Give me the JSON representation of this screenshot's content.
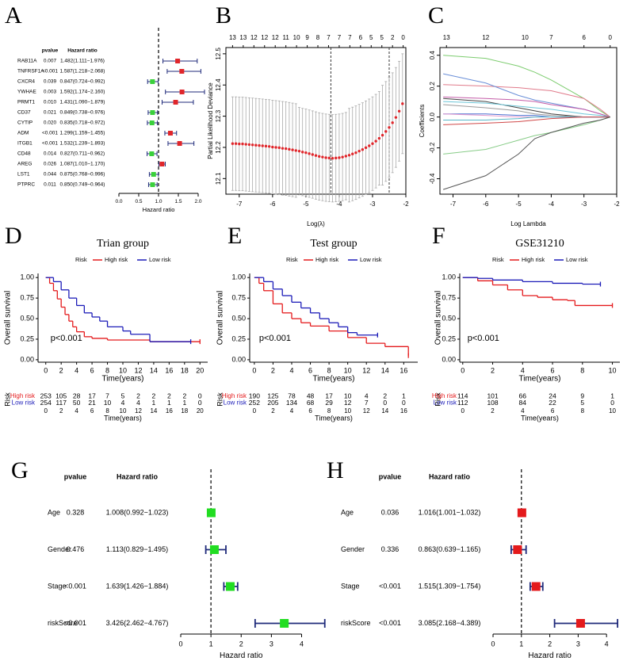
{
  "chart_data": [
    {
      "type": "forest",
      "panel": "A",
      "column_headers": [
        "pvalue",
        "Hazard ratio"
      ],
      "categories": [
        "RAB11A",
        "TNFRSF1A",
        "CXCR4",
        "YWHAE",
        "PRMT1",
        "CD37",
        "CYTIP",
        "ADM",
        "ITGB1",
        "CD48",
        "AREG",
        "LST1",
        "PTPRC"
      ],
      "pvalues": [
        "0.007",
        "<0.001",
        "0.039",
        "0.003",
        "0.010",
        "0.021",
        "0.020",
        "<0.001",
        "<0.001",
        "0.014",
        "0.026",
        "0.044",
        "0.011"
      ],
      "values": [
        1.482,
        1.587,
        0.847,
        1.592,
        1.431,
        0.849,
        0.835,
        1.299,
        1.532,
        0.827,
        1.087,
        0.875,
        0.85
      ],
      "lower": [
        1.111,
        1.218,
        0.724,
        1.174,
        1.09,
        0.738,
        0.718,
        1.159,
        1.239,
        0.711,
        1.01,
        0.768,
        0.749
      ],
      "upper": [
        1.976,
        2.068,
        0.992,
        2.16,
        1.879,
        0.976,
        0.972,
        1.455,
        1.893,
        0.962,
        1.17,
        0.996,
        0.964
      ],
      "value_labels": [
        "1.482(1.111−1.976)",
        "1.587(1.218−2.068)",
        "0.847(0.724−0.992)",
        "1.592(1.174−2.160)",
        "1.431(1.090−1.879)",
        "0.849(0.738−0.976)",
        "0.835(0.718−0.972)",
        "1.299(1.159−1.455)",
        "1.532(1.239−1.893)",
        "0.827(0.711−0.962)",
        "1.087(1.010−1.170)",
        "0.875(0.768−0.996)",
        "0.850(0.749−0.964)"
      ],
      "colors": [
        "#e0262b",
        "#e0262b",
        "#3ad13a",
        "#e0262b",
        "#e0262b",
        "#3ad13a",
        "#3ad13a",
        "#e0262b",
        "#e0262b",
        "#3ad13a",
        "#e0262b",
        "#3ad13a",
        "#3ad13a"
      ],
      "ci_color": "#1f2a7a",
      "reference_line": 1,
      "xlim": [
        0,
        2.2
      ],
      "xticks": [
        {
          "value": 0,
          "label": "0.0"
        },
        {
          "value": 0.5,
          "label": "0.5"
        },
        {
          "value": 1,
          "label": "1.0"
        },
        {
          "value": 1.5,
          "label": "1.5"
        },
        {
          "value": 2,
          "label": "2.0"
        }
      ],
      "xlabel": "Hazard ratio"
    },
    {
      "type": "cv_curve",
      "panel": "B",
      "xlabel": "Log(λ)",
      "ylabel": "Partial Likelihood Deviance",
      "x": [
        -7.2,
        -7.1,
        -7.0,
        -6.9,
        -6.8,
        -6.7,
        -6.6,
        -6.5,
        -6.4,
        -6.3,
        -6.2,
        -6.1,
        -6.0,
        -5.9,
        -5.8,
        -5.7,
        -5.6,
        -5.5,
        -5.4,
        -5.3,
        -5.2,
        -5.1,
        -5.0,
        -4.9,
        -4.8,
        -4.7,
        -4.6,
        -4.5,
        -4.4,
        -4.3,
        -4.2,
        -4.1,
        -4.0,
        -3.9,
        -3.8,
        -3.7,
        -3.6,
        -3.5,
        -3.4,
        -3.3,
        -3.2,
        -3.1,
        -3.0,
        -2.9,
        -2.8,
        -2.7,
        -2.6,
        -2.5,
        -2.4,
        -2.3,
        -2.2,
        -2.1
      ],
      "values": [
        12.212,
        12.212,
        12.211,
        12.211,
        12.21,
        12.209,
        12.208,
        12.207,
        12.206,
        12.205,
        12.204,
        12.203,
        12.201,
        12.2,
        12.199,
        12.197,
        12.196,
        12.194,
        12.192,
        12.19,
        12.188,
        12.185,
        12.183,
        12.18,
        12.177,
        12.174,
        12.171,
        12.169,
        12.167,
        12.166,
        12.165,
        12.166,
        12.167,
        12.169,
        12.172,
        12.175,
        12.179,
        12.183,
        12.188,
        12.193,
        12.199,
        12.205,
        12.212,
        12.22,
        12.229,
        12.239,
        12.251,
        12.264,
        12.279,
        12.296,
        12.316,
        12.34
      ],
      "errors": [
        0.15,
        0.15,
        0.15,
        0.15,
        0.15,
        0.15,
        0.15,
        0.15,
        0.15,
        0.15,
        0.15,
        0.15,
        0.15,
        0.15,
        0.15,
        0.15,
        0.15,
        0.15,
        0.15,
        0.15,
        0.14,
        0.14,
        0.14,
        0.14,
        0.14,
        0.14,
        0.14,
        0.14,
        0.14,
        0.14,
        0.14,
        0.14,
        0.14,
        0.14,
        0.14,
        0.15,
        0.15,
        0.15,
        0.15,
        0.15,
        0.15,
        0.15,
        0.15,
        0.15,
        0.15,
        0.16,
        0.16,
        0.16,
        0.16,
        0.16,
        0.16,
        0.16
      ],
      "color": "#e0262b",
      "error_color": "#aaaaaa",
      "xlim": [
        -7.4,
        -2.0
      ],
      "xticks": [
        -7,
        -6,
        -5,
        -4,
        -3,
        -2
      ],
      "ylim": [
        12.05,
        12.52
      ],
      "yticks": [
        12.1,
        12.2,
        12.3,
        12.4,
        12.5
      ],
      "top_ticks": [
        {
          "value": -7.2,
          "label": "13"
        },
        {
          "value": -6.88,
          "label": "13"
        },
        {
          "value": -6.56,
          "label": "12"
        },
        {
          "value": -6.24,
          "label": "12"
        },
        {
          "value": -5.92,
          "label": "12"
        },
        {
          "value": -5.6,
          "label": "11"
        },
        {
          "value": -5.28,
          "label": "10"
        },
        {
          "value": -4.96,
          "label": "9"
        },
        {
          "value": -4.64,
          "label": "8"
        },
        {
          "value": -4.32,
          "label": "7"
        },
        {
          "value": -4.0,
          "label": "7"
        },
        {
          "value": -3.68,
          "label": "7"
        },
        {
          "value": -3.36,
          "label": "6"
        },
        {
          "value": -3.04,
          "label": "5"
        },
        {
          "value": -2.72,
          "label": "5"
        },
        {
          "value": -2.4,
          "label": "2"
        },
        {
          "value": -2.08,
          "label": "0"
        }
      ],
      "vlines": [
        -4.25,
        -2.5
      ]
    },
    {
      "type": "coef_path",
      "panel": "C",
      "xlabel": "Log Lambda",
      "ylabel": "Coefficients",
      "x": [
        -7.3,
        -6,
        -5,
        -4.5,
        -4,
        -3,
        -2.5,
        -2.2
      ],
      "series": [
        {
          "color": "#7ccc6e",
          "values": [
            0.4,
            0.38,
            0.33,
            0.29,
            0.24,
            0.12,
            0.04,
            0
          ]
        },
        {
          "color": "#e07a8a",
          "values": [
            0.21,
            0.2,
            0.19,
            0.18,
            0.17,
            0.12,
            0.05,
            0
          ]
        },
        {
          "color": "#6a8fd8",
          "values": [
            0.28,
            0.22,
            0.14,
            0.11,
            0.09,
            0.05,
            0.02,
            0
          ]
        },
        {
          "color": "#c45ca8",
          "values": [
            0.13,
            0.12,
            0.11,
            0.1,
            0.08,
            0.05,
            0.02,
            0
          ]
        },
        {
          "color": "#444444",
          "values": [
            0.12,
            0.1,
            0.06,
            0.04,
            0.02,
            0,
            0,
            0
          ]
        },
        {
          "color": "#6cc6d8",
          "values": [
            0.1,
            0.09,
            0.07,
            0.06,
            0.05,
            0.02,
            0.01,
            0
          ]
        },
        {
          "color": "#999999",
          "values": [
            0.08,
            0.06,
            0.04,
            0.02,
            0.01,
            0,
            0,
            0
          ]
        },
        {
          "color": "#4a6fd0",
          "values": [
            0.02,
            0.02,
            0.01,
            0.01,
            0,
            0,
            0,
            0
          ]
        },
        {
          "color": "#e39ad0",
          "values": [
            0.02,
            0.01,
            0,
            0,
            0,
            0,
            0,
            0
          ]
        },
        {
          "color": "#58b8c8",
          "values": [
            -0.02,
            -0.02,
            -0.01,
            0,
            0,
            0,
            0,
            0
          ]
        },
        {
          "color": "#d04848",
          "values": [
            -0.05,
            -0.04,
            -0.03,
            -0.02,
            -0.01,
            0,
            0,
            0
          ]
        },
        {
          "color": "#88cc88",
          "values": [
            -0.24,
            -0.21,
            -0.15,
            -0.12,
            -0.1,
            -0.05,
            -0.02,
            0
          ]
        },
        {
          "color": "#555555",
          "values": [
            -0.47,
            -0.38,
            -0.24,
            -0.14,
            -0.1,
            -0.04,
            -0.02,
            0
          ]
        }
      ],
      "xlim": [
        -7.4,
        -2.0
      ],
      "xticks": [
        -7,
        -6,
        -5,
        -4,
        -3,
        -2
      ],
      "ylim": [
        -0.5,
        0.45
      ],
      "yticks": [
        -0.4,
        -0.2,
        {
          "value": 0,
          "label": "0.0"
        },
        0.2,
        0.4
      ],
      "top_ticks": [
        {
          "value": -7.2,
          "label": "13"
        },
        {
          "value": -6,
          "label": "12"
        },
        {
          "value": -4.8,
          "label": "10"
        },
        {
          "value": -4,
          "label": "7"
        },
        {
          "value": -3,
          "label": "6"
        },
        {
          "value": -2.2,
          "label": "0"
        }
      ]
    },
    {
      "type": "km",
      "panel": "D",
      "title": "Trian group",
      "legend_title": "Risk",
      "ylabel": "Overall survival",
      "xlabel": "Time(years)",
      "annotation": "p<0.001",
      "series": [
        {
          "name": "High risk",
          "color": "#e41a1c",
          "x": [
            0,
            0.5,
            1,
            1.5,
            2,
            2.5,
            3,
            3.5,
            4,
            5,
            6,
            8,
            10,
            13.5,
            20
          ],
          "values": [
            1,
            0.93,
            0.84,
            0.74,
            0.64,
            0.55,
            0.47,
            0.4,
            0.34,
            0.28,
            0.26,
            0.24,
            0.24,
            0.22,
            0.22
          ],
          "at_risk": [
            253,
            105,
            28,
            17,
            7,
            5,
            2,
            2,
            2,
            2,
            0
          ]
        },
        {
          "name": "Low risk",
          "color": "#1c1cb8",
          "x": [
            0,
            1,
            2,
            3,
            4,
            5,
            6,
            7,
            8,
            10,
            11,
            13.5,
            18.8
          ],
          "values": [
            1,
            0.95,
            0.85,
            0.75,
            0.66,
            0.57,
            0.52,
            0.47,
            0.4,
            0.35,
            0.31,
            0.22,
            0.22
          ],
          "at_risk": [
            254,
            117,
            50,
            21,
            10,
            4,
            4,
            1,
            1,
            1,
            0
          ]
        }
      ],
      "xlim": [
        -1,
        21
      ],
      "xticks": [
        0,
        2,
        4,
        6,
        8,
        10,
        12,
        14,
        16,
        18,
        20
      ],
      "ylim": [
        -0.03,
        1.05
      ],
      "yticks": [
        {
          "value": 0,
          "label": "0.00"
        },
        {
          "value": 0.25,
          "label": "0.25"
        },
        {
          "value": 0.5,
          "label": "0.50"
        },
        {
          "value": 0.75,
          "label": "0.75"
        },
        {
          "value": 1,
          "label": "1.00"
        }
      ]
    },
    {
      "type": "km",
      "panel": "E",
      "title": "Test group",
      "legend_title": "Risk",
      "ylabel": "Overall survival",
      "xlabel": "Time(years)",
      "annotation": "p<0.001",
      "series": [
        {
          "name": "High risk",
          "color": "#e41a1c",
          "x": [
            0,
            0.5,
            1,
            2,
            3,
            4,
            5,
            6,
            8,
            10,
            12,
            14,
            16.5
          ],
          "values": [
            1,
            0.93,
            0.84,
            0.68,
            0.57,
            0.5,
            0.45,
            0.41,
            0.35,
            0.27,
            0.2,
            0.16,
            0.05
          ],
          "at_risk": [
            190,
            125,
            78,
            48,
            17,
            10,
            4,
            2,
            1
          ]
        },
        {
          "name": "Low risk",
          "color": "#1c1cb8",
          "x": [
            0,
            1,
            2,
            3,
            4,
            5,
            6,
            7,
            8,
            9,
            10,
            11,
            13.2
          ],
          "values": [
            1,
            0.95,
            0.86,
            0.78,
            0.7,
            0.63,
            0.57,
            0.5,
            0.45,
            0.4,
            0.33,
            0.3,
            0.3
          ],
          "at_risk": [
            252,
            205,
            134,
            68,
            29,
            12,
            7,
            0,
            0
          ]
        }
      ],
      "xlim": [
        -0.5,
        17.5
      ],
      "xticks": [
        0,
        2,
        4,
        6,
        8,
        10,
        12,
        14,
        16
      ],
      "ylim": [
        -0.03,
        1.05
      ],
      "yticks": [
        {
          "value": 0,
          "label": "0.00"
        },
        {
          "value": 0.25,
          "label": "0.25"
        },
        {
          "value": 0.5,
          "label": "0.50"
        },
        {
          "value": 0.75,
          "label": "0.75"
        },
        {
          "value": 1,
          "label": "1.00"
        }
      ]
    },
    {
      "type": "km",
      "panel": "F",
      "title": "GSE31210",
      "legend_title": "Risk",
      "ylabel": "Overall survival",
      "xlabel": "Time(years)",
      "annotation": "p<0.001",
      "series": [
        {
          "name": "High risk",
          "color": "#e41a1c",
          "x": [
            0,
            1,
            2,
            3,
            4,
            5,
            6,
            7,
            7.5,
            10
          ],
          "values": [
            1,
            0.96,
            0.91,
            0.85,
            0.78,
            0.76,
            0.73,
            0.72,
            0.66,
            0.66
          ],
          "at_risk": [
            114,
            101,
            66,
            24,
            9,
            1
          ]
        },
        {
          "name": "Low risk",
          "color": "#1c1cb8",
          "x": [
            0,
            1,
            2,
            4,
            6,
            8,
            9.2
          ],
          "values": [
            1,
            0.99,
            0.97,
            0.95,
            0.93,
            0.92,
            0.92
          ],
          "at_risk": [
            112,
            108,
            84,
            22,
            5,
            0
          ]
        }
      ],
      "xlim": [
        -0.2,
        10.5
      ],
      "xticks": [
        0,
        2,
        4,
        6,
        8,
        10
      ],
      "ylim": [
        -0.03,
        1.05
      ],
      "yticks": [
        {
          "value": 0,
          "label": "0.00"
        },
        {
          "value": 0.25,
          "label": "0.25"
        },
        {
          "value": 0.5,
          "label": "0.50"
        },
        {
          "value": 0.75,
          "label": "0.75"
        },
        {
          "value": 1,
          "label": "1.00"
        }
      ]
    },
    {
      "type": "forest",
      "panel": "G",
      "column_headers": [
        "pvalue",
        "Hazard ratio"
      ],
      "categories": [
        "Age",
        "Gender",
        "Stage",
        "riskScore"
      ],
      "pvalues": [
        "0.328",
        "0.476",
        "<0.001",
        "<0.001"
      ],
      "values": [
        1.008,
        1.113,
        1.639,
        3.426
      ],
      "lower": [
        0.992,
        0.829,
        1.426,
        2.462
      ],
      "upper": [
        1.023,
        1.495,
        1.884,
        4.767
      ],
      "value_labels": [
        "1.008(0.992−1.023)",
        "1.113(0.829−1.495)",
        "1.639(1.426−1.884)",
        "3.426(2.462−4.767)"
      ],
      "color": "#22dd22",
      "ci_color": "#1f2a7a",
      "reference_line": 1,
      "xlim": [
        0,
        4.8
      ],
      "xticks": [
        0,
        1,
        2,
        3,
        4
      ],
      "xlabel": "Hazard ratio"
    },
    {
      "type": "forest",
      "panel": "H",
      "column_headers": [
        "pvalue",
        "Hazard ratio"
      ],
      "categories": [
        "Age",
        "Gender",
        "Stage",
        "riskScore"
      ],
      "pvalues": [
        "0.036",
        "0.336",
        "<0.001",
        "<0.001"
      ],
      "values": [
        1.016,
        0.863,
        1.515,
        3.085
      ],
      "lower": [
        1.001,
        0.639,
        1.309,
        2.168
      ],
      "upper": [
        1.032,
        1.165,
        1.754,
        4.389
      ],
      "value_labels": [
        "1.016(1.001−1.032)",
        "0.863(0.639−1.165)",
        "1.515(1.309−1.754)",
        "3.085(2.168−4.389)"
      ],
      "color": "#e41a1c",
      "ci_color": "#1f2a7a",
      "reference_line": 1,
      "xlim": [
        0,
        4.4
      ],
      "xticks": [
        0,
        1,
        2,
        3,
        4
      ],
      "xlabel": "Hazard ratio"
    }
  ]
}
